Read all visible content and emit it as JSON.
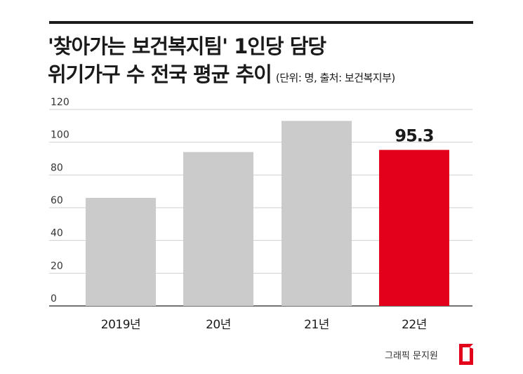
{
  "header": {
    "title_line1": "'찾아가는 보건복지팀' 1인당 담당",
    "title_line2": "위기가구 수 전국 평균 추이",
    "note": "(단위: 명, 출처: 보건복지부)"
  },
  "chart_data": {
    "type": "bar",
    "categories": [
      "2019년",
      "20년",
      "21년",
      "22년"
    ],
    "values": [
      66,
      94,
      113,
      95.3
    ],
    "data_labels": [
      "",
      "",
      "",
      "95.3"
    ],
    "ylim": [
      0,
      120
    ],
    "yticks": [
      0,
      20,
      40,
      60,
      80,
      100,
      120
    ],
    "grid": true,
    "colors": [
      "#cbcbcb",
      "#cbcbcb",
      "#cbcbcb",
      "#e2001a"
    ]
  },
  "footer": {
    "credit": "그래픽 문지원",
    "logo_icon": "asiae-logo-icon",
    "logo_color": "#e2001a"
  }
}
